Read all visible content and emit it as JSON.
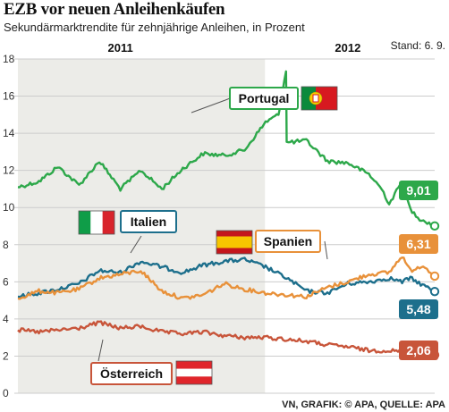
{
  "header": {
    "title": "EZB vor neuen Anleihenkäufen",
    "subtitle": "Sekundärmarktrendite für zehnjährige Anleihen, in Prozent",
    "stand": "Stand: 6. 9."
  },
  "footer": {
    "source": "VN, GRAFIK: © APA, QUELLE: APA"
  },
  "colors": {
    "portugal": "#2da84a",
    "italien": "#1d6f8c",
    "spanien": "#e8913a",
    "oesterreich": "#c8553a",
    "shade": "#ecece8",
    "grid": "#cccccc"
  },
  "chart_data": {
    "type": "line",
    "x_range": [
      "2011-01",
      "2012-09-06"
    ],
    "year_labels": [
      {
        "label": "2011",
        "x": "2011-06"
      },
      {
        "label": "2012",
        "x": "2012-05"
      }
    ],
    "shaded_period": [
      "2011-01",
      "2011-12-31"
    ],
    "ylim": [
      0,
      18
    ],
    "y_ticks": [
      0,
      2,
      4,
      6,
      8,
      10,
      12,
      14,
      16,
      18
    ],
    "grid": true,
    "series": [
      {
        "name": "Portugal",
        "key": "portugal",
        "end_label": "9,01",
        "points": [
          [
            "2011-01",
            11.1
          ],
          [
            "2011-02",
            11.4
          ],
          [
            "2011-03",
            12.2
          ],
          [
            "2011-04",
            11.2
          ],
          [
            "2011-05",
            12.5
          ],
          [
            "2011-06",
            11.0
          ],
          [
            "2011-07",
            12.0
          ],
          [
            "2011-08",
            11.0
          ],
          [
            "2011-09",
            12.1
          ],
          [
            "2011-10",
            12.9
          ],
          [
            "2011-11",
            12.8
          ],
          [
            "2011-12",
            13.1
          ],
          [
            "2012-01",
            14.6
          ],
          [
            "2012-01-20",
            15.0
          ],
          [
            "2012-01-31",
            17.4
          ],
          [
            "2012-02",
            13.5
          ],
          [
            "2012-03",
            13.6
          ],
          [
            "2012-04",
            12.5
          ],
          [
            "2012-05",
            12.4
          ],
          [
            "2012-06",
            11.8
          ],
          [
            "2012-06-20",
            11.0
          ],
          [
            "2012-07",
            10.2
          ],
          [
            "2012-07-20",
            11.4
          ],
          [
            "2012-08",
            9.9
          ],
          [
            "2012-08-15",
            9.4
          ],
          [
            "2012-09-06",
            9.01
          ]
        ]
      },
      {
        "name": "Italien",
        "key": "italien",
        "end_label": "5,48",
        "points": [
          [
            "2011-01",
            5.2
          ],
          [
            "2011-02",
            5.4
          ],
          [
            "2011-03",
            5.6
          ],
          [
            "2011-04",
            5.9
          ],
          [
            "2011-05",
            6.6
          ],
          [
            "2011-06",
            6.5
          ],
          [
            "2011-07",
            7.1
          ],
          [
            "2011-08",
            6.8
          ],
          [
            "2011-09",
            6.5
          ],
          [
            "2011-10",
            6.9
          ],
          [
            "2011-11",
            7.1
          ],
          [
            "2011-12",
            7.2
          ],
          [
            "2012-01",
            6.8
          ],
          [
            "2012-02",
            6.2
          ],
          [
            "2012-03",
            5.5
          ],
          [
            "2012-04",
            5.4
          ],
          [
            "2012-05",
            5.9
          ],
          [
            "2012-06",
            6.0
          ],
          [
            "2012-07",
            6.2
          ],
          [
            "2012-07-20",
            6.0
          ],
          [
            "2012-08",
            6.2
          ],
          [
            "2012-09-06",
            5.48
          ]
        ]
      },
      {
        "name": "Spanien",
        "key": "spanien",
        "end_label": "6,31",
        "points": [
          [
            "2011-01",
            5.1
          ],
          [
            "2011-02",
            5.5
          ],
          [
            "2011-03",
            5.4
          ],
          [
            "2011-04",
            5.6
          ],
          [
            "2011-05",
            6.2
          ],
          [
            "2011-06",
            6.4
          ],
          [
            "2011-07",
            6.6
          ],
          [
            "2011-08",
            5.5
          ],
          [
            "2011-09",
            5.1
          ],
          [
            "2011-10",
            5.3
          ],
          [
            "2011-11",
            5.9
          ],
          [
            "2011-12",
            5.6
          ],
          [
            "2012-01",
            5.4
          ],
          [
            "2012-02",
            5.3
          ],
          [
            "2012-03",
            5.2
          ],
          [
            "2012-04",
            5.7
          ],
          [
            "2012-05",
            6.0
          ],
          [
            "2012-06",
            6.4
          ],
          [
            "2012-07",
            6.5
          ],
          [
            "2012-07-20",
            7.4
          ],
          [
            "2012-08",
            6.6
          ],
          [
            "2012-08-20",
            6.9
          ],
          [
            "2012-09-06",
            6.31
          ]
        ]
      },
      {
        "name": "Österreich",
        "key": "oesterreich",
        "end_label": "2,06",
        "points": [
          [
            "2011-01",
            3.4
          ],
          [
            "2011-02",
            3.3
          ],
          [
            "2011-03",
            3.4
          ],
          [
            "2011-04",
            3.5
          ],
          [
            "2011-05",
            3.8
          ],
          [
            "2011-06",
            3.5
          ],
          [
            "2011-07",
            3.6
          ],
          [
            "2011-08",
            3.3
          ],
          [
            "2011-09",
            3.2
          ],
          [
            "2011-10",
            3.3
          ],
          [
            "2011-11",
            3.1
          ],
          [
            "2011-12",
            3.0
          ],
          [
            "2012-01",
            3.0
          ],
          [
            "2012-02",
            2.9
          ],
          [
            "2012-03",
            2.8
          ],
          [
            "2012-04",
            2.6
          ],
          [
            "2012-05",
            2.5
          ],
          [
            "2012-06",
            2.3
          ],
          [
            "2012-07",
            2.3
          ],
          [
            "2012-08",
            2.2
          ],
          [
            "2012-09-06",
            2.06
          ]
        ]
      }
    ]
  }
}
